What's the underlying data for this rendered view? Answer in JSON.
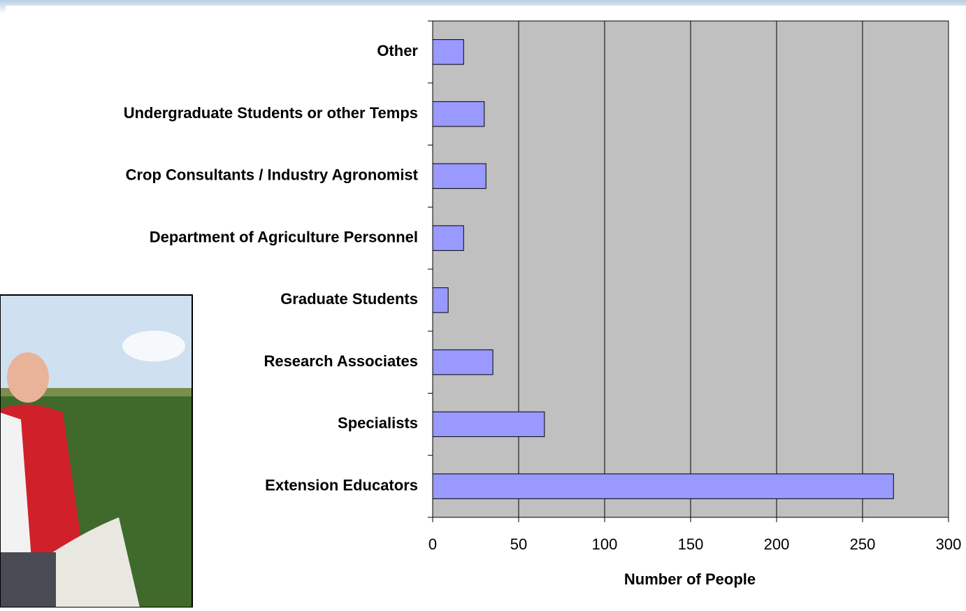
{
  "chart_data": {
    "type": "bar",
    "orientation": "horizontal",
    "x_label": "Number of People",
    "categories": [
      "Extension Educators",
      "Specialists",
      "Research Associates",
      "Graduate Students",
      "Department of Agriculture Personnel",
      "Crop Consultants / Industry Agronomist",
      "Undergraduate Students or other Temps",
      "Other"
    ],
    "values": [
      268,
      65,
      35,
      9,
      18,
      31,
      30,
      18
    ],
    "color": "#9999ff",
    "xlim": [
      0,
      300
    ],
    "xticks": [
      0,
      50,
      100,
      150,
      200,
      250,
      300
    ],
    "grid": true
  }
}
